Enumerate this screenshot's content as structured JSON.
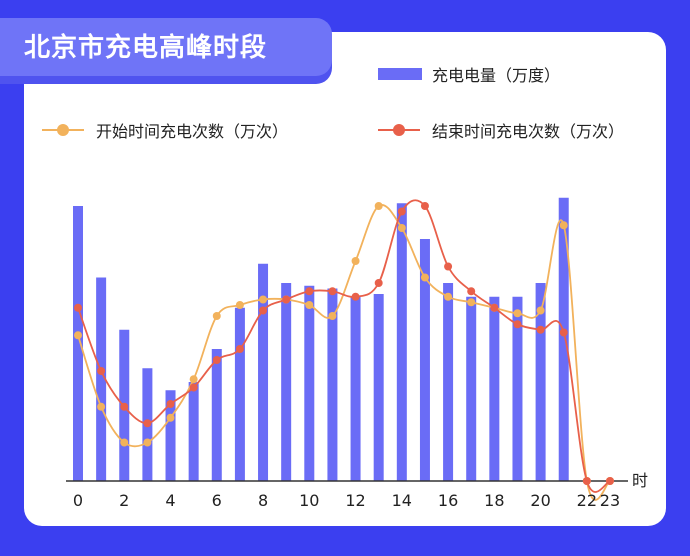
{
  "title": "北京市充电高峰时段",
  "legend": {
    "bars": "充电电量（万度）",
    "start": "开始时间充电次数（万次）",
    "end": "结束时间充电次数（万次）"
  },
  "colors": {
    "background": "#3b3ff0",
    "bars": "#6a6cf6",
    "start_line": "#f2b25c",
    "end_line": "#e8604a"
  },
  "chart_data": {
    "type": "bar",
    "title": "北京市充电高峰时段",
    "x_unit_label": "时",
    "categories": [
      0,
      1,
      2,
      3,
      4,
      5,
      6,
      7,
      8,
      9,
      10,
      11,
      12,
      13,
      14,
      15,
      16,
      17,
      18,
      19,
      20,
      21,
      22,
      23
    ],
    "tick_labels": [
      "0",
      "2",
      "4",
      "6",
      "8",
      "10",
      "12",
      "14",
      "16",
      "18",
      "20",
      "22",
      "23"
    ],
    "series": [
      {
        "name": "充电电量（万度）",
        "type": "bar",
        "values": [
          100,
          74,
          55,
          41,
          33,
          36,
          48,
          63,
          79,
          72,
          71,
          70,
          67,
          68,
          101,
          88,
          72,
          67,
          67,
          67,
          72,
          103,
          0,
          0
        ]
      },
      {
        "name": "开始时间充电次数（万次）",
        "type": "line",
        "values": [
          53,
          27,
          14,
          14,
          23,
          37,
          60,
          64,
          66,
          66,
          64,
          60,
          80,
          100,
          92,
          74,
          67,
          65,
          63,
          61,
          62,
          93,
          0,
          0
        ]
      },
      {
        "name": "结束时间充电次数（万次）",
        "type": "line",
        "values": [
          63,
          40,
          27,
          21,
          28,
          34,
          44,
          48,
          62,
          66,
          69,
          69,
          67,
          72,
          98,
          100,
          78,
          69,
          63,
          57,
          55,
          54,
          0,
          0
        ]
      }
    ]
  }
}
